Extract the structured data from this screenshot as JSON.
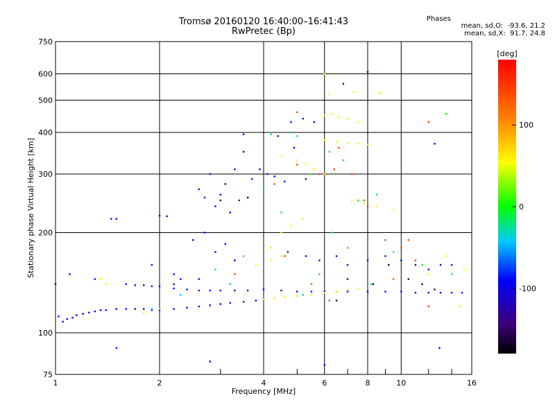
{
  "header": {
    "title_line1": "Tromsø 20160120 16:40:00–16:41:43",
    "title_line2": "RwPretec (Bp)",
    "stats_title": "Phases",
    "stats_O": "mean, sd,O:  -93.6, 21.2",
    "stats_X": "mean, sd,X:  91.7, 24.8"
  },
  "colorbar": {
    "label": "[deg]",
    "ticks": [
      {
        "label": "100",
        "value": 100
      },
      {
        "label": "0",
        "value": 0
      },
      {
        "label": "-100",
        "value": -100
      }
    ],
    "range": [
      -180,
      180
    ]
  },
  "chart_data": {
    "type": "scatter",
    "title": "Tromsø 20160120 16:40:00–16:41:43",
    "subtitle": "RwPretec (Bp)",
    "xlabel": "Frequency [MHz]",
    "ylabel": "Stationary phase Virtual Height [km]",
    "xscale": "log",
    "yscale": "log",
    "xlim": [
      1,
      16
    ],
    "ylim": [
      75,
      750
    ],
    "xticks": [
      {
        "label": "1",
        "value": 1
      },
      {
        "label": "2",
        "value": 2
      },
      {
        "label": "4",
        "value": 4
      },
      {
        "label": "6",
        "value": 6
      },
      {
        "label": "8",
        "value": 8
      },
      {
        "label": "10",
        "value": 10
      },
      {
        "label": "16",
        "value": 16
      }
    ],
    "yticks": [
      {
        "label": "75",
        "value": 75
      },
      {
        "label": "100",
        "value": 100
      },
      {
        "label": "200",
        "value": 200
      },
      {
        "label": "300",
        "value": 300
      },
      {
        "label": "400",
        "value": 400
      },
      {
        "label": "500",
        "value": 500
      },
      {
        "label": "600",
        "value": 600
      },
      {
        "label": "750",
        "value": 750
      }
    ],
    "grid": true,
    "color_by": "phase [deg]",
    "series": [
      {
        "points": [
          [
            1.02,
            112,
            -95
          ],
          [
            1.05,
            108,
            -92
          ],
          [
            1.08,
            110,
            -98
          ],
          [
            1.12,
            111,
            -90
          ],
          [
            1.15,
            113,
            -94
          ],
          [
            1.2,
            114,
            -96
          ],
          [
            1.25,
            115,
            -88
          ],
          [
            1.3,
            116,
            -93
          ],
          [
            1.35,
            117,
            -97
          ],
          [
            1.4,
            117,
            -91
          ],
          [
            1.5,
            118,
            -95
          ],
          [
            1.6,
            118,
            -90
          ],
          [
            1.7,
            118,
            -94
          ],
          [
            1.8,
            118,
            -99
          ],
          [
            1.9,
            117,
            -92
          ],
          [
            2.0,
            117,
            -95
          ],
          [
            2.2,
            118,
            -93
          ],
          [
            2.4,
            119,
            -96
          ],
          [
            2.6,
            120,
            -91
          ],
          [
            2.8,
            121,
            -94
          ],
          [
            3.0,
            122,
            -97
          ],
          [
            3.2,
            123,
            -90
          ],
          [
            3.5,
            124,
            -95
          ],
          [
            3.8,
            125,
            -93
          ],
          [
            4.0,
            126,
            -92
          ],
          [
            1.6,
            140,
            -95
          ],
          [
            1.7,
            139,
            -92
          ],
          [
            1.8,
            139,
            -97
          ],
          [
            1.9,
            138,
            -90
          ],
          [
            2.0,
            138,
            -94
          ],
          [
            2.2,
            136,
            -96
          ],
          [
            2.4,
            135,
            -93
          ],
          [
            2.6,
            134,
            -91
          ],
          [
            2.8,
            134,
            -95
          ],
          [
            3.0,
            134,
            -92
          ],
          [
            3.3,
            134,
            -94
          ],
          [
            3.6,
            134,
            -97
          ],
          [
            4.0,
            135,
            -90
          ],
          [
            4.5,
            134,
            -95
          ],
          [
            5.0,
            133,
            -93
          ],
          [
            5.5,
            133,
            -96
          ],
          [
            6.0,
            133,
            -92
          ],
          [
            6.5,
            133,
            -94
          ],
          [
            7.0,
            133,
            -91
          ],
          [
            8.0,
            133,
            -95
          ],
          [
            9.0,
            133,
            -92
          ],
          [
            10.0,
            133,
            -95
          ],
          [
            11.0,
            132,
            -93
          ],
          [
            12.0,
            132,
            -96
          ],
          [
            13.0,
            132,
            -94
          ],
          [
            14.0,
            132,
            -92
          ],
          [
            15.0,
            132,
            -95
          ],
          [
            1.45,
            220,
            -94
          ],
          [
            1.5,
            220,
            -92
          ],
          [
            2.0,
            225,
            -96
          ],
          [
            2.1,
            224,
            -93
          ],
          [
            2.6,
            270,
            -95
          ],
          [
            2.7,
            255,
            -92
          ],
          [
            2.8,
            300,
            -97
          ],
          [
            2.9,
            240,
            -90
          ],
          [
            3.0,
            260,
            -94
          ],
          [
            3.1,
            280,
            -96
          ],
          [
            3.2,
            230,
            -93
          ],
          [
            3.3,
            310,
            -91
          ],
          [
            3.4,
            250,
            -95
          ],
          [
            3.5,
            350,
            -92
          ],
          [
            2.5,
            190,
            -95
          ],
          [
            2.7,
            200,
            -92
          ],
          [
            2.9,
            175,
            -97
          ],
          [
            3.1,
            185,
            -90
          ],
          [
            3.3,
            165,
            -94
          ],
          [
            3.7,
            290,
            -96
          ],
          [
            3.9,
            310,
            -93
          ],
          [
            4.1,
            300,
            -91
          ],
          [
            4.3,
            295,
            -95
          ],
          [
            4.6,
            285,
            -92
          ],
          [
            4.8,
            430,
            -95
          ],
          [
            5.2,
            440,
            -92
          ],
          [
            5.6,
            430,
            -97
          ],
          [
            4.4,
            390,
            -90
          ],
          [
            4.9,
            360,
            -94
          ],
          [
            5.3,
            170,
            -92
          ],
          [
            5.8,
            165,
            -95
          ],
          [
            6.5,
            170,
            -93
          ],
          [
            7.0,
            160,
            -96
          ],
          [
            8.0,
            165,
            -94
          ],
          [
            9.0,
            170,
            -92
          ],
          [
            10,
            165,
            -95
          ],
          [
            11,
            160,
            -93
          ],
          [
            12,
            155,
            -96
          ],
          [
            13,
            160,
            -94
          ],
          [
            14,
            160,
            -92
          ],
          [
            1.0,
            140,
            -93
          ],
          [
            1.1,
            150,
            -95
          ],
          [
            1.3,
            145,
            -92
          ],
          [
            1.9,
            160,
            -97
          ],
          [
            2.2,
            150,
            -90
          ],
          [
            6.0,
            80,
            -94
          ],
          [
            1.5,
            90,
            -95
          ],
          [
            2.8,
            82,
            -93
          ],
          [
            8.0,
            608,
            -96
          ],
          [
            6.8,
            560,
            -94
          ],
          [
            12.5,
            370,
            -92
          ],
          [
            12.9,
            90,
            -95
          ],
          [
            3.5,
            395,
            -93
          ],
          [
            2.3,
            145,
            -95
          ],
          [
            2.6,
            145,
            -92
          ]
        ]
      },
      {
        "points": [
          [
            4.0,
            126,
            60
          ],
          [
            4.3,
            127,
            62
          ],
          [
            4.6,
            128,
            58
          ],
          [
            5.0,
            129,
            65
          ],
          [
            5.5,
            130,
            60
          ],
          [
            6.0,
            132,
            63
          ],
          [
            6.5,
            133,
            59
          ],
          [
            7.0,
            135,
            62
          ],
          [
            7.5,
            136,
            57
          ],
          [
            6.0,
            450,
            60
          ],
          [
            6.3,
            455,
            65
          ],
          [
            6.6,
            445,
            58
          ],
          [
            7.0,
            440,
            62
          ],
          [
            7.5,
            430,
            60
          ],
          [
            6.0,
            380,
            58
          ],
          [
            6.5,
            375,
            62
          ],
          [
            7.0,
            372,
            60
          ],
          [
            7.5,
            370,
            64
          ],
          [
            8.0,
            368,
            57
          ],
          [
            5.0,
            330,
            62
          ],
          [
            5.3,
            320,
            58
          ],
          [
            5.6,
            310,
            65
          ],
          [
            6.0,
            300,
            60
          ],
          [
            4.5,
            340,
            55
          ],
          [
            4.5,
            200,
            60
          ],
          [
            4.8,
            210,
            62
          ],
          [
            5.2,
            220,
            58
          ],
          [
            4.2,
            180,
            63
          ],
          [
            3.8,
            160,
            55
          ],
          [
            4.2,
            165,
            60
          ],
          [
            4.5,
            170,
            62
          ],
          [
            7.2,
            250,
            58
          ],
          [
            7.8,
            245,
            62
          ],
          [
            8.5,
            240,
            60
          ],
          [
            9.5,
            235,
            57
          ],
          [
            1.8,
            115,
            58
          ],
          [
            2.0,
            118,
            62
          ],
          [
            1.35,
            145,
            55
          ],
          [
            1.4,
            140,
            60
          ],
          [
            6.2,
            520,
            60
          ],
          [
            6.0,
            600,
            62
          ],
          [
            7.3,
            530,
            58
          ],
          [
            8.7,
            525,
            62
          ],
          [
            15.2,
            155,
            60
          ],
          [
            14.8,
            120,
            58
          ],
          [
            13.5,
            170,
            62
          ],
          [
            12.0,
            150,
            60
          ]
        ]
      },
      {
        "points": [
          [
            4.2,
            395,
            -20
          ],
          [
            4.8,
            400,
            -10
          ],
          [
            5.5,
            300,
            -5
          ],
          [
            4.0,
            270,
            -25
          ],
          [
            5.8,
            150,
            -15
          ],
          [
            6.3,
            200,
            -30
          ],
          [
            7.0,
            180,
            -12
          ],
          [
            8.2,
            140,
            -8
          ],
          [
            3.5,
            170,
            -20
          ],
          [
            2.9,
            155,
            -25
          ],
          [
            5.0,
            390,
            0
          ],
          [
            6.2,
            350,
            -5
          ],
          [
            3.2,
            140,
            -15
          ],
          [
            8.5,
            260,
            -10
          ],
          [
            9.5,
            175,
            -20
          ],
          [
            1.9,
            118,
            -40
          ],
          [
            2.3,
            130,
            -35
          ],
          [
            11.5,
            160,
            -5
          ],
          [
            13.5,
            455,
            0
          ],
          [
            14.0,
            150,
            -15
          ],
          [
            4.5,
            230,
            -20
          ],
          [
            6.8,
            330,
            -10
          ],
          [
            7.5,
            250,
            -5
          ],
          [
            5.2,
            130,
            -30
          ]
        ]
      },
      {
        "points": [
          [
            4.3,
            280,
            130
          ],
          [
            5.0,
            320,
            140
          ],
          [
            5.8,
            300,
            150
          ],
          [
            6.6,
            360,
            135
          ],
          [
            7.2,
            300,
            145
          ],
          [
            8.0,
            240,
            150
          ],
          [
            9.0,
            190,
            140
          ],
          [
            10.0,
            180,
            135
          ],
          [
            11.0,
            165,
            145
          ],
          [
            12.0,
            120,
            150
          ],
          [
            5.5,
            140,
            130
          ],
          [
            6.2,
            125,
            140
          ],
          [
            7.8,
            250,
            135
          ],
          [
            9.5,
            145,
            130
          ],
          [
            4.6,
            170,
            140
          ],
          [
            12.0,
            430,
            150
          ],
          [
            10.5,
            190,
            140
          ],
          [
            3.3,
            150,
            130
          ],
          [
            6.4,
            310,
            145
          ],
          [
            5.0,
            460,
            140
          ]
        ]
      },
      {
        "points": [
          [
            6.5,
            125,
            -160
          ],
          [
            7.0,
            145,
            -150
          ],
          [
            8.3,
            140,
            -155
          ],
          [
            9.2,
            160,
            -165
          ],
          [
            5.3,
            290,
            -160
          ],
          [
            4.7,
            175,
            -150
          ],
          [
            10.5,
            145,
            -158
          ],
          [
            11.5,
            140,
            -162
          ],
          [
            12.5,
            135,
            -155
          ],
          [
            3.0,
            250,
            -160
          ],
          [
            2.2,
            140,
            -150
          ],
          [
            3.6,
            255,
            -165
          ]
        ]
      }
    ]
  }
}
